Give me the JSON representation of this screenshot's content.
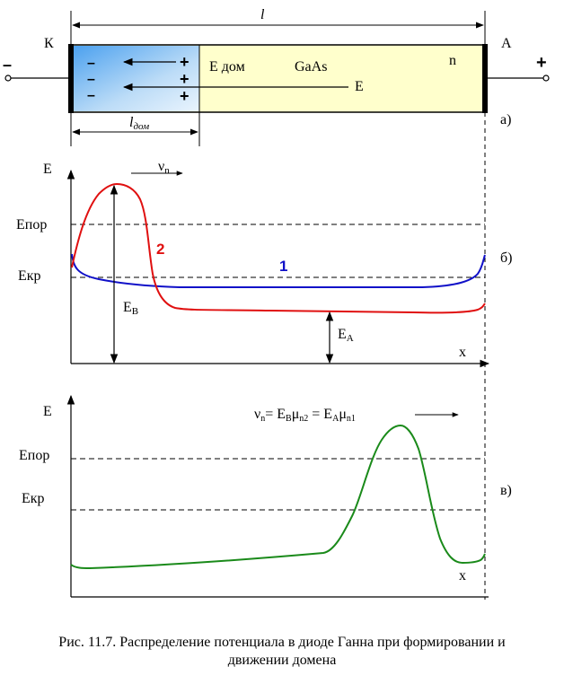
{
  "diagram": {
    "diode": {
      "length_label": "l",
      "cathode_label": "К",
      "anode_label": "А",
      "minus_sign": "–",
      "plus_sign": "+",
      "domain_field_label": "E дом",
      "material_label": "GaAs",
      "type_label": "n",
      "field_label": "E",
      "domain_length_label": "l",
      "domain_length_sub": "дом",
      "panel_label": "а)",
      "charge_minus": "–",
      "charge_plus": "+"
    },
    "plot_b": {
      "y_label": "E",
      "threshold_label": "Eпор",
      "critical_label": "Eкр",
      "velocity_label": "ν",
      "velocity_sub": "n",
      "curve1_label": "1",
      "curve2_label": "2",
      "eb_label": "E",
      "eb_sub": "B",
      "ea_label": "E",
      "ea_sub": "A",
      "x_label": "x",
      "panel_label": "б)"
    },
    "plot_c": {
      "y_label": "E",
      "threshold_label": "Eпор",
      "critical_label": "Eкр",
      "formula_v": "ν",
      "formula_v_sub": "n",
      "formula_eq1": "=  E",
      "formula_eb_sub": "B",
      "formula_mu": "μ",
      "formula_mu_sub1": "n2",
      "formula_eq2": " =  E",
      "formula_ea_sub": "A",
      "formula_mu_sub2": "n1",
      "x_label": "x",
      "panel_label": "в)"
    }
  },
  "colors": {
    "curve1": "#1010c8",
    "curve2": "#e01010",
    "curve_c": "#1a8a1a",
    "diode_body": "#ffffcc",
    "domain_fill": "#59aaf0"
  },
  "caption": {
    "line1": "Рис. 11.7. Распределение потенциала в диоде Ганна при формировании и",
    "line2": "движении домена"
  }
}
